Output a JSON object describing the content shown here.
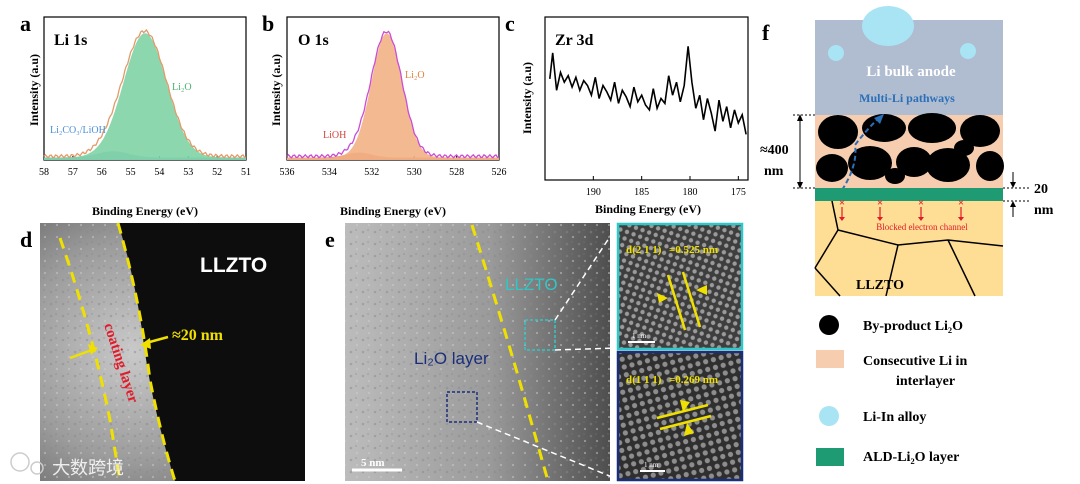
{
  "figure": {
    "panel_labels": {
      "a": "a",
      "b": "b",
      "c": "c",
      "d": "d",
      "e": "e",
      "f": "f"
    },
    "watermark": "大数跨境"
  },
  "chart_data": [
    {
      "type": "area",
      "panel": "a",
      "title": "Li 1s",
      "xlabel": "Binding Energy (eV)",
      "ylabel": "Intensity (a.u)",
      "xlim": [
        58,
        51
      ],
      "ylim": [
        0,
        1.15
      ],
      "xticks": [
        "58",
        "57",
        "56",
        "55",
        "54",
        "53",
        "52",
        "51"
      ],
      "series": [
        {
          "name": "Li₂O",
          "color": "#7fd3a4",
          "center": 54.5,
          "fwhm": 1.75,
          "height": 1.0
        },
        {
          "name": "Li₂CO₃/LiOH",
          "color": "#7aaee0",
          "center": 55.6,
          "fwhm": 1.3,
          "height": 0.05
        }
      ],
      "envelope_color": "#e39a6a",
      "labels": {
        "main": "Li₂O",
        "minor": "Li₂CO₃/LiOH"
      }
    },
    {
      "type": "area",
      "panel": "b",
      "title": "O 1s",
      "xlabel": "Binding Energy (eV)",
      "ylabel": "Intensity (a.u)",
      "xlim": [
        536,
        526
      ],
      "ylim": [
        0,
        1.15
      ],
      "xticks": [
        "536",
        "534",
        "532",
        "530",
        "528",
        "526"
      ],
      "series": [
        {
          "name": "Li₂O",
          "color": "#f2b185",
          "center": 531.3,
          "fwhm": 1.7,
          "height": 1.0
        },
        {
          "name": "LiOH",
          "color": "#d9735c",
          "center": 532.6,
          "fwhm": 1.4,
          "height": 0.04
        }
      ],
      "envelope_color": "#c94dd6",
      "labels": {
        "main": "Li₂O",
        "minor": "LiOH"
      }
    },
    {
      "type": "line",
      "panel": "c",
      "title": "Zr 3d",
      "xlabel": "Binding Energy (eV)",
      "ylabel": "Intensity (a.u)",
      "xlim": [
        195,
        174
      ],
      "ylim": [
        0,
        1.0
      ],
      "xticks": [
        "190",
        "185",
        "180",
        "175"
      ],
      "x": [
        194.5,
        194.2,
        193.8,
        193.4,
        193,
        192.6,
        192.2,
        191.8,
        191.4,
        191,
        190.6,
        190.2,
        189.8,
        189.4,
        189,
        188.6,
        188.2,
        187.8,
        187.4,
        187,
        186.6,
        186.2,
        185.8,
        185.4,
        185,
        184.6,
        184.2,
        183.8,
        183.4,
        183,
        182.6,
        182.2,
        181.8,
        181.4,
        181,
        180.6,
        180.2,
        179.8,
        179.4,
        179,
        178.6,
        178.2,
        177.8,
        177.4,
        177,
        176.6,
        176.2,
        175.8,
        175.4,
        175,
        174.6,
        174.2
      ],
      "values": [
        0.62,
        0.78,
        0.55,
        0.66,
        0.6,
        0.64,
        0.57,
        0.63,
        0.55,
        0.61,
        0.58,
        0.52,
        0.63,
        0.5,
        0.58,
        0.54,
        0.49,
        0.6,
        0.47,
        0.55,
        0.51,
        0.45,
        0.57,
        0.48,
        0.52,
        0.46,
        0.43,
        0.56,
        0.44,
        0.5,
        0.47,
        0.64,
        0.52,
        0.6,
        0.48,
        0.58,
        0.82,
        0.6,
        0.44,
        0.52,
        0.37,
        0.5,
        0.41,
        0.3,
        0.49,
        0.36,
        0.45,
        0.32,
        0.43,
        0.35,
        0.4,
        0.28
      ]
    }
  ],
  "panel_d": {
    "sample_label": "LLZTO",
    "thickness_label": "≈20 nm",
    "coating_label": "coating layer"
  },
  "panel_e": {
    "scale_bar": "5 nm",
    "llzto_label": "LLZTO",
    "li2o_label": "Li₂O layer",
    "inset_top": {
      "plane": "d(2 1 1)",
      "spacing": "=0.525 nm",
      "scale": "1 nm"
    },
    "inset_bottom": {
      "plane": "d(1 1 1)",
      "spacing": "=0.269 nm",
      "scale": "1 nm"
    }
  },
  "panel_f": {
    "anode_label": "Li bulk anode",
    "pathway_label": "Multi-Li pathways",
    "blocked_label": "Blocked electron channel",
    "llzto_label": "LLZTO",
    "dim_left": "≈400",
    "dim_left_unit": "nm",
    "dim_right": "20",
    "dim_right_unit": "nm",
    "legend": [
      {
        "label": "By-product Li₂O",
        "color": "#000000",
        "shape": "circle"
      },
      {
        "label": "Consecutive Li in",
        "label2": "interlayer",
        "color": "#f7cdb0",
        "shape": "rect"
      },
      {
        "label": "Li-In alloy",
        "color": "#a9e4f4",
        "shape": "circle"
      },
      {
        "label": "ALD-Li₂O layer",
        "color": "#1f9b74",
        "shape": "rect"
      }
    ]
  }
}
